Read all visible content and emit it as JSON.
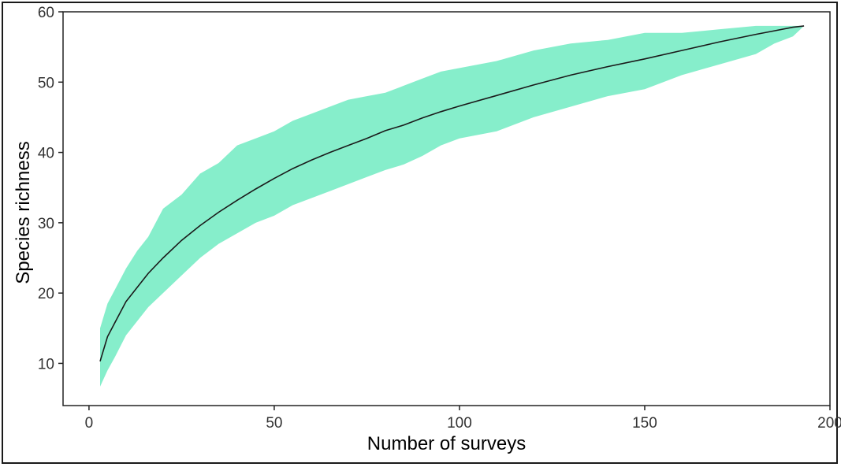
{
  "chart_data": {
    "type": "area",
    "title": "",
    "xlabel": "Number of surveys",
    "ylabel": "Species richness",
    "xlim": [
      -7,
      200
    ],
    "ylim": [
      4,
      60
    ],
    "xticks": [
      0,
      50,
      100,
      150,
      200
    ],
    "yticks": [
      10,
      20,
      30,
      40,
      50,
      60
    ],
    "grid": false,
    "legend": "none",
    "series": [
      {
        "type": "line",
        "x": [
          3,
          5,
          7,
          10,
          13,
          16,
          20,
          25,
          30,
          35,
          40,
          45,
          50,
          55,
          60,
          65,
          70,
          75,
          80,
          85,
          90,
          95,
          100,
          110,
          120,
          130,
          140,
          150,
          160,
          170,
          180,
          185,
          190,
          193
        ],
        "y": [
          10.3,
          13.8,
          15.8,
          18.8,
          20.8,
          22.8,
          25.0,
          27.5,
          29.6,
          31.5,
          33.2,
          34.8,
          36.3,
          37.7,
          38.9,
          40.0,
          41.0,
          42.0,
          43.1,
          43.9,
          44.9,
          45.8,
          46.6,
          48.1,
          49.6,
          51.0,
          52.2,
          53.3,
          54.5,
          55.7,
          56.8,
          57.3,
          57.8,
          58.0
        ]
      },
      {
        "type": "ribbon",
        "x": [
          3,
          5,
          7,
          10,
          13,
          16,
          20,
          25,
          30,
          35,
          40,
          45,
          50,
          55,
          60,
          65,
          70,
          75,
          80,
          85,
          90,
          95,
          100,
          110,
          120,
          130,
          140,
          150,
          160,
          170,
          180,
          185,
          190,
          193
        ],
        "lower": [
          6.7,
          9.0,
          10.9,
          14.0,
          16.0,
          18.0,
          20.0,
          22.5,
          25.0,
          27.0,
          28.5,
          30.0,
          31.0,
          32.5,
          33.5,
          34.5,
          35.5,
          36.5,
          37.5,
          38.3,
          39.5,
          41.0,
          42.0,
          43.0,
          45.0,
          46.5,
          48.0,
          49.0,
          51.0,
          52.5,
          54.0,
          55.5,
          56.5,
          58.0
        ],
        "upper": [
          15.0,
          18.5,
          20.5,
          23.5,
          26.0,
          28.0,
          32.0,
          34.0,
          37.0,
          38.5,
          41.0,
          42.0,
          43.0,
          44.5,
          45.5,
          46.5,
          47.5,
          48.0,
          48.5,
          49.5,
          50.5,
          51.5,
          52.0,
          53.0,
          54.5,
          55.5,
          56.0,
          57.0,
          57.0,
          57.5,
          58.0,
          58.0,
          58.0,
          58.0
        ]
      }
    ],
    "colors": {
      "ribbon": "#86eecb",
      "line": "#1a1a1a",
      "axis": "#222222"
    }
  }
}
